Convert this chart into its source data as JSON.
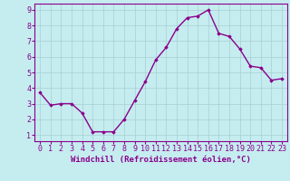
{
  "x": [
    0,
    1,
    2,
    3,
    4,
    5,
    6,
    7,
    8,
    9,
    10,
    11,
    12,
    13,
    14,
    15,
    16,
    17,
    18,
    19,
    20,
    21,
    22,
    23
  ],
  "y": [
    3.7,
    2.9,
    3.0,
    3.0,
    2.4,
    1.2,
    1.2,
    1.2,
    2.0,
    3.2,
    4.4,
    5.8,
    6.6,
    7.8,
    8.5,
    8.6,
    9.0,
    7.5,
    7.3,
    6.5,
    5.4,
    5.3,
    4.5,
    4.6
  ],
  "line_color": "#8B008B",
  "marker": "D",
  "marker_size": 1.8,
  "line_width": 1.0,
  "bg_color": "#C5EDF0",
  "grid_color": "#A8D0D4",
  "xlabel": "Windchill (Refroidissement éolien,°C)",
  "xlabel_fontsize": 6.5,
  "tick_fontsize": 6.0,
  "xlim_min": -0.5,
  "xlim_max": 23.5,
  "ylim_min": 0.6,
  "ylim_max": 9.4,
  "yticks": [
    1,
    2,
    3,
    4,
    5,
    6,
    7,
    8,
    9
  ],
  "xticks": [
    0,
    1,
    2,
    3,
    4,
    5,
    6,
    7,
    8,
    9,
    10,
    11,
    12,
    13,
    14,
    15,
    16,
    17,
    18,
    19,
    20,
    21,
    22,
    23
  ]
}
